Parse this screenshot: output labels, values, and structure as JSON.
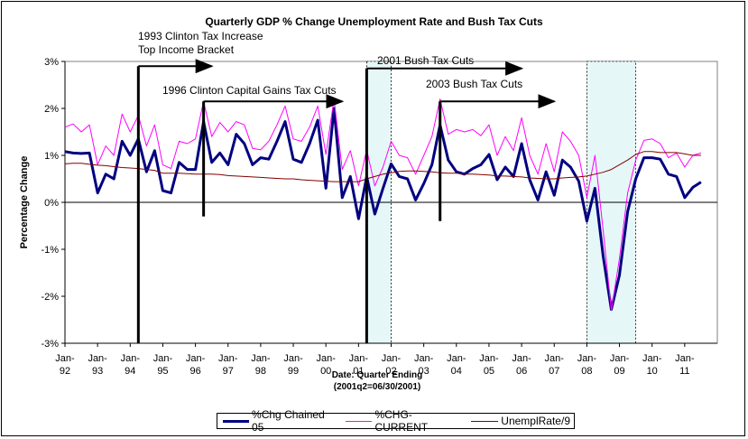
{
  "chart_data": {
    "type": "line",
    "title": "Quarterly GDP % Change Unemployment Rate and Bush Tax Cuts",
    "ylabel": "Percentage Change",
    "xlabel_line1": "Date: Quarter Ending",
    "xlabel_line2": "(2001q2=06/30/2001)",
    "ylim": [
      -3,
      3
    ],
    "y_ticks": [
      "3%",
      "2%",
      "1%",
      "0%",
      "-1%",
      "-2%",
      "-3%"
    ],
    "x_ticks": [
      {
        "top": "Jan-",
        "bottom": "92",
        "date": 1992.0
      },
      {
        "top": "Jan-",
        "bottom": "93",
        "date": 1993.0
      },
      {
        "top": "Jan-",
        "bottom": "94",
        "date": 1994.0
      },
      {
        "top": "Jan-",
        "bottom": "95",
        "date": 1995.0
      },
      {
        "top": "Jan-",
        "bottom": "96",
        "date": 1996.0
      },
      {
        "top": "Jan-",
        "bottom": "97",
        "date": 1997.0
      },
      {
        "top": "Jan-",
        "bottom": "98",
        "date": 1998.0
      },
      {
        "top": "Jan-",
        "bottom": "99",
        "date": 1999.0
      },
      {
        "top": "Jan-",
        "bottom": "00",
        "date": 2000.0
      },
      {
        "top": "Jan-",
        "bottom": "01",
        "date": 2001.0
      },
      {
        "top": "Jan-",
        "bottom": "02",
        "date": 2002.0
      },
      {
        "top": "Jan-",
        "bottom": "03",
        "date": 2003.0
      },
      {
        "top": "Jan-",
        "bottom": "04",
        "date": 2004.0
      },
      {
        "top": "Jan-",
        "bottom": "05",
        "date": 2005.0
      },
      {
        "top": "Jan-",
        "bottom": "06",
        "date": 2006.0
      },
      {
        "top": "Jan-",
        "bottom": "07",
        "date": 2007.0
      },
      {
        "top": "Jan-",
        "bottom": "08",
        "date": 2008.0
      },
      {
        "top": "Jan-",
        "bottom": "09",
        "date": 2009.0
      },
      {
        "top": "Jan-",
        "bottom": "10",
        "date": 2010.0
      },
      {
        "top": "Jan-",
        "bottom": "11",
        "date": 2011.0
      }
    ],
    "x_start": 1992.0,
    "x_step": 0.25,
    "series": [
      {
        "name": "%Chg Chained 05",
        "color": "#000080",
        "values": [
          1.08,
          1.05,
          1.04,
          1.05,
          0.2,
          0.6,
          0.5,
          1.3,
          1.0,
          1.35,
          0.65,
          1.1,
          0.25,
          0.2,
          0.85,
          0.7,
          0.7,
          1.72,
          0.85,
          1.05,
          0.8,
          1.45,
          1.25,
          0.8,
          0.95,
          0.92,
          1.3,
          1.72,
          0.92,
          0.85,
          1.25,
          1.75,
          0.3,
          2.0,
          0.1,
          0.55,
          -0.35,
          0.55,
          -0.25,
          0.3,
          0.82,
          0.55,
          0.5,
          0.05,
          0.4,
          0.8,
          1.65,
          0.9,
          0.65,
          0.6,
          0.72,
          0.8,
          1.02,
          0.48,
          0.75,
          0.55,
          1.25,
          0.48,
          0.05,
          0.65,
          0.15,
          0.9,
          0.75,
          0.45,
          -0.4,
          0.3,
          -1.15,
          -2.28,
          -1.55,
          -0.2,
          0.5,
          0.95,
          0.95,
          0.92,
          0.6,
          0.55,
          0.1,
          0.32,
          0.43
        ]
      },
      {
        "name": "%CHG-CURRENT",
        "color": "#FF00FF",
        "values": [
          1.6,
          1.67,
          1.5,
          1.65,
          0.8,
          1.2,
          1.0,
          1.88,
          1.5,
          1.85,
          1.2,
          1.65,
          0.8,
          0.72,
          1.3,
          1.25,
          1.35,
          2.15,
          1.4,
          1.7,
          1.5,
          1.72,
          1.65,
          1.15,
          1.12,
          1.3,
          1.65,
          2.05,
          1.35,
          1.3,
          1.6,
          2.05,
          1.02,
          2.2,
          0.7,
          1.1,
          0.35,
          1.12,
          0.35,
          0.75,
          1.3,
          1.0,
          0.95,
          0.6,
          1.0,
          1.4,
          2.2,
          1.45,
          1.55,
          1.5,
          1.55,
          1.42,
          1.65,
          1.0,
          1.4,
          1.1,
          1.8,
          1.0,
          0.6,
          1.25,
          0.65,
          1.5,
          1.3,
          1.0,
          0.1,
          1.0,
          -0.6,
          -2.3,
          -1.2,
          0.2,
          0.9,
          1.32,
          1.35,
          1.25,
          0.95,
          1.05,
          0.75,
          1.0,
          1.05
        ]
      },
      {
        "name": "UnemplRate/9",
        "color": "#800000",
        "values": [
          0.82,
          0.83,
          0.83,
          0.81,
          0.79,
          0.78,
          0.76,
          0.74,
          0.73,
          0.72,
          0.7,
          0.68,
          0.62,
          0.62,
          0.62,
          0.61,
          0.6,
          0.6,
          0.6,
          0.59,
          0.57,
          0.56,
          0.55,
          0.54,
          0.53,
          0.52,
          0.51,
          0.5,
          0.5,
          0.48,
          0.47,
          0.46,
          0.45,
          0.44,
          0.44,
          0.44,
          0.44,
          0.5,
          0.55,
          0.6,
          0.63,
          0.66,
          0.67,
          0.67,
          0.66,
          0.65,
          0.63,
          0.62,
          0.62,
          0.6,
          0.6,
          0.59,
          0.58,
          0.56,
          0.56,
          0.55,
          0.54,
          0.52,
          0.51,
          0.5,
          0.5,
          0.52,
          0.53,
          0.54,
          0.56,
          0.6,
          0.64,
          0.7,
          0.8,
          0.9,
          1.02,
          1.08,
          1.08,
          1.06,
          1.06,
          1.06,
          1.03,
          1.0,
          1.0
        ]
      }
    ],
    "shaded_periods": [
      {
        "start": 2001.25,
        "end": 2002.0
      },
      {
        "start": 2008.0,
        "end": 2009.5
      }
    ],
    "markers": [
      {
        "date": 1994.25,
        "low": -3,
        "high": 2.9,
        "arrow_end": 1996.5
      },
      {
        "date": 1996.25,
        "low": -0.3,
        "high": 2.15,
        "arrow_end": 2000.5
      },
      {
        "date": 2001.25,
        "low": -3,
        "high": 2.85,
        "arrow_end": 2006.0
      },
      {
        "date": 2003.5,
        "low": -0.4,
        "high": 2.15,
        "arrow_end": 2007.0
      }
    ],
    "annotations": [
      {
        "id": "ann_1993",
        "text": "1993 Clinton Tax Increase"
      },
      {
        "id": "ann_top",
        "text": "Top Income Bracket"
      },
      {
        "id": "ann_1996",
        "text": "1996 Clinton Capital Gains Tax Cuts"
      },
      {
        "id": "ann_2001",
        "text": "2001 Bush Tax Cuts"
      },
      {
        "id": "ann_2003",
        "text": "2003 Bush Tax Cuts"
      }
    ],
    "legend": [
      "%Chg Chained 05",
      "%CHG-CURRENT",
      "UnemplRate/9"
    ],
    "legend_position": "bottom",
    "grid": false
  }
}
